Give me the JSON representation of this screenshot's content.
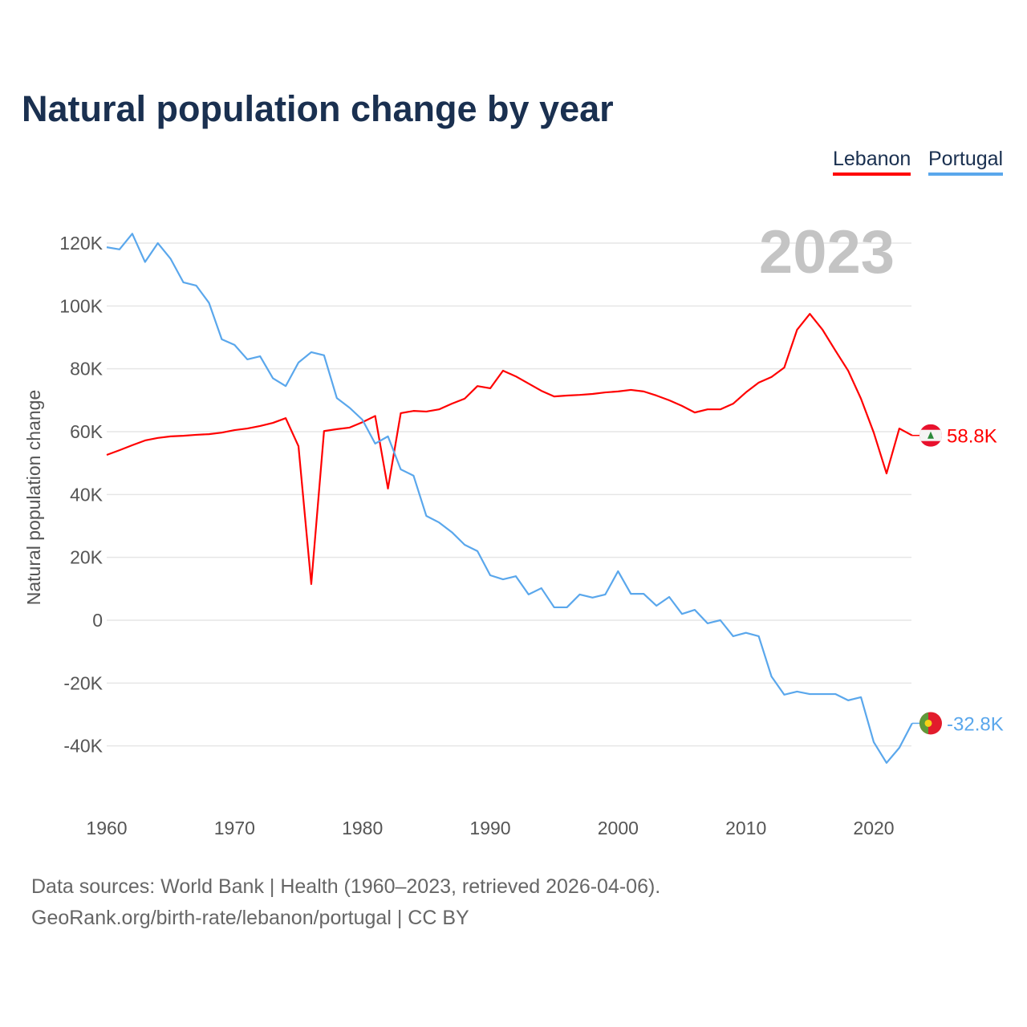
{
  "title": "Natural population change by year",
  "footer": {
    "line1": "Data sources: World Bank | Health (1960–2023, retrieved 2026-04-06).",
    "line2": "GeoRank.org/birth-rate/lebanon/portugal | CC BY"
  },
  "chart_data": {
    "type": "line",
    "title": "Natural population change by year",
    "xlabel": "",
    "ylabel": "Natural population change",
    "year_label": "2023",
    "ylim": [
      -50000,
      130000
    ],
    "xlim": [
      1960,
      2023
    ],
    "grid": true,
    "legend_placement": "top-right",
    "y_ticks": [
      {
        "v": 120000,
        "label": "120K"
      },
      {
        "v": 100000,
        "label": "100K"
      },
      {
        "v": 80000,
        "label": "80K"
      },
      {
        "v": 60000,
        "label": "60K"
      },
      {
        "v": 40000,
        "label": "40K"
      },
      {
        "v": 20000,
        "label": "20K"
      },
      {
        "v": 0,
        "label": "0"
      },
      {
        "v": -20000,
        "label": "-20K"
      },
      {
        "v": -40000,
        "label": "-40K"
      }
    ],
    "x_ticks": [
      {
        "v": 1960,
        "label": "1960"
      },
      {
        "v": 1970,
        "label": "1970"
      },
      {
        "v": 1980,
        "label": "1980"
      },
      {
        "v": 1990,
        "label": "1990"
      },
      {
        "v": 2000,
        "label": "2000"
      },
      {
        "v": 2010,
        "label": "2010"
      },
      {
        "v": 2020,
        "label": "2020"
      }
    ],
    "x_start": 1960,
    "series": [
      {
        "name": "Lebanon",
        "color": "#ff0000",
        "end_label": "58.8K",
        "flag": "lebanon-flag",
        "values": [
          52.6,
          54.1,
          55.7,
          57.2,
          58,
          58.5,
          58.7,
          59,
          59.2,
          59.7,
          60.5,
          61,
          61.8,
          62.8,
          64.3,
          55.4,
          11.5,
          60.2,
          60.8,
          61.3,
          63,
          65,
          41.9,
          65.9,
          66.6,
          66.4,
          67.1,
          68.9,
          70.5,
          74.5,
          73.8,
          79.4,
          77.6,
          75.3,
          73,
          71.2,
          71.5,
          71.7,
          72,
          72.5,
          72.8,
          73.3,
          72.8,
          71.5,
          70,
          68.2,
          66.1,
          67.1,
          67.1,
          68.9,
          72.5,
          75.6,
          77.4,
          80.4,
          92.4,
          97.5,
          92.4,
          85.8,
          79.4,
          70.5,
          59.7,
          46.7,
          61,
          58.8
        ]
      },
      {
        "name": "Portugal",
        "color": "#5aa7ec",
        "end_label": "-32.8K",
        "flag": "portugal-flag",
        "values": [
          118.7,
          118,
          123,
          114,
          120,
          115,
          107.5,
          106.5,
          101,
          89.4,
          87.6,
          83,
          84,
          77,
          74.5,
          82,
          85.3,
          84.3,
          70.7,
          67.6,
          63.8,
          56.2,
          58.5,
          48,
          46,
          33.2,
          31.1,
          28,
          24,
          22,
          14.3,
          13,
          14,
          8.2,
          10.2,
          4.1,
          4.1,
          8.2,
          7.2,
          8.2,
          15.6,
          8.4,
          8.4,
          4.6,
          7.4,
          2,
          3.3,
          -1,
          0,
          -5.1,
          -4,
          -5.1,
          -17.9,
          -23.7,
          -22.7,
          -23.5,
          -23.5,
          -23.5,
          -25.5,
          -24.5,
          -38.8,
          -45.4,
          -40.6,
          -32.8
        ]
      }
    ],
    "value_unit": "thousands"
  }
}
